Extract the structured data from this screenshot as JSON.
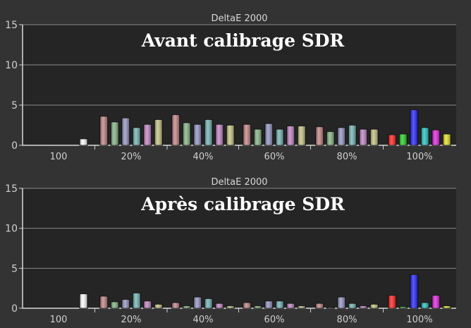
{
  "chart_data": [
    {
      "type": "bar",
      "title": "DeltaE 2000",
      "annotation": "Avant calibrage SDR",
      "categories": [
        "100",
        "20%",
        "40%",
        "60%",
        "80%",
        "100%"
      ],
      "yticks": [
        "15",
        "10",
        "5",
        "0"
      ],
      "ylim": [
        0,
        15
      ],
      "grid": true,
      "bar_colors": [
        "#ffffff",
        "#c08080",
        "#80b080",
        "#9090c0",
        "#70b0b0",
        "#c080c0",
        "#c0c080",
        "#ff2020",
        "#20d020",
        "#2020ff",
        "#20c0c0",
        "#e020e0",
        "#e0e020"
      ],
      "groups": [
        {
          "values": [
            0.8
          ],
          "colors": [
            0
          ]
        },
        {
          "values": [
            3.6,
            2.9,
            3.4,
            2.2,
            2.6,
            3.2
          ],
          "colors": [
            1,
            2,
            3,
            4,
            5,
            6
          ]
        },
        {
          "values": [
            3.8,
            2.8,
            2.6,
            3.2,
            2.6,
            2.5
          ],
          "colors": [
            1,
            2,
            3,
            4,
            5,
            6
          ]
        },
        {
          "values": [
            2.6,
            2.0,
            2.7,
            2.0,
            2.4,
            2.4
          ],
          "colors": [
            1,
            2,
            3,
            4,
            5,
            6
          ]
        },
        {
          "values": [
            2.3,
            1.7,
            2.2,
            2.5,
            2.0,
            2.0
          ],
          "colors": [
            1,
            2,
            3,
            4,
            5,
            6
          ]
        },
        {
          "values": [
            1.3,
            1.4,
            4.4,
            2.2,
            1.9,
            1.4
          ],
          "colors": [
            7,
            8,
            9,
            10,
            11,
            12
          ]
        }
      ]
    },
    {
      "type": "bar",
      "title": "DeltaE 2000",
      "annotation": "Après calibrage SDR",
      "categories": [
        "100",
        "20%",
        "40%",
        "60%",
        "80%",
        "100%"
      ],
      "yticks": [
        "15",
        "10",
        "5",
        "0"
      ],
      "ylim": [
        0,
        15
      ],
      "grid": true,
      "bar_colors": [
        "#ffffff",
        "#c08080",
        "#80b080",
        "#9090c0",
        "#70b0b0",
        "#c080c0",
        "#c0c080",
        "#ff2020",
        "#20d020",
        "#2020ff",
        "#20c0c0",
        "#e020e0",
        "#e0e020"
      ],
      "groups": [
        {
          "values": [
            1.8
          ],
          "colors": [
            0
          ]
        },
        {
          "values": [
            1.5,
            0.8,
            1.1,
            1.9,
            0.9,
            0.5
          ],
          "colors": [
            1,
            2,
            3,
            4,
            5,
            6
          ]
        },
        {
          "values": [
            0.7,
            0.3,
            1.4,
            1.2,
            0.6,
            0.3
          ],
          "colors": [
            1,
            2,
            3,
            4,
            5,
            6
          ]
        },
        {
          "values": [
            0.7,
            0.3,
            0.9,
            0.9,
            0.6,
            0.3
          ],
          "colors": [
            1,
            2,
            3,
            4,
            5,
            6
          ]
        },
        {
          "values": [
            0.6,
            0.1,
            1.4,
            0.6,
            0.3,
            0.5
          ],
          "colors": [
            1,
            2,
            3,
            4,
            5,
            6
          ]
        },
        {
          "values": [
            1.6,
            0.2,
            4.2,
            0.7,
            1.6,
            0.3
          ],
          "colors": [
            7,
            8,
            9,
            10,
            11,
            12
          ]
        }
      ]
    }
  ]
}
